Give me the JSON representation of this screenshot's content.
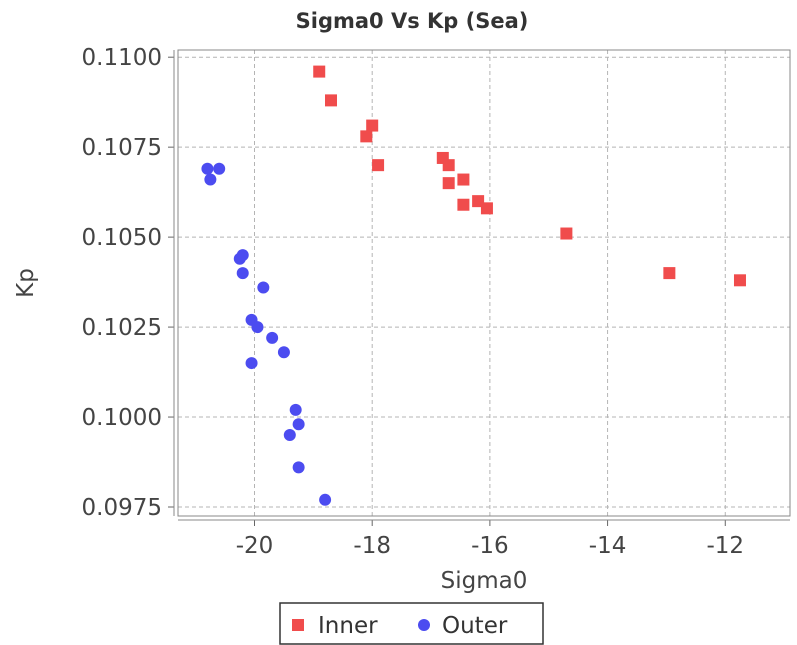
{
  "chart_data": {
    "type": "scatter",
    "title": "Sigma0 Vs Kp (Sea)",
    "xlabel": "Sigma0",
    "ylabel": "Kp",
    "xlim": [
      -21.3,
      -10.9
    ],
    "ylim": [
      0.09725,
      0.1102
    ],
    "xticks": [
      -20,
      -18,
      -16,
      -14,
      -12
    ],
    "xtick_labels": [
      "-20",
      "-18",
      "-16",
      "-14",
      "-12"
    ],
    "yticks": [
      0.0975,
      0.1,
      0.1025,
      0.105,
      0.1075,
      0.11
    ],
    "ytick_labels": [
      "0.0975",
      "0.1000",
      "0.1025",
      "0.1050",
      "0.1075",
      "0.1100"
    ],
    "grid": true,
    "legend_position": "bottom-center",
    "series": [
      {
        "name": "Inner",
        "marker": "square",
        "color": "#f04c4c",
        "points": [
          [
            -18.9,
            0.1096
          ],
          [
            -18.7,
            0.1088
          ],
          [
            -18.0,
            0.1081
          ],
          [
            -18.1,
            0.1078
          ],
          [
            -17.9,
            0.107
          ],
          [
            -16.8,
            0.1072
          ],
          [
            -16.7,
            0.107
          ],
          [
            -16.7,
            0.1065
          ],
          [
            -16.45,
            0.1066
          ],
          [
            -16.45,
            0.1059
          ],
          [
            -16.2,
            0.106
          ],
          [
            -16.05,
            0.1058
          ],
          [
            -14.7,
            0.1051
          ],
          [
            -12.95,
            0.104
          ],
          [
            -11.75,
            0.1038
          ]
        ]
      },
      {
        "name": "Outer",
        "marker": "circle",
        "color": "#4c4cf0",
        "points": [
          [
            -20.8,
            0.1069
          ],
          [
            -20.6,
            0.1069
          ],
          [
            -20.75,
            0.1066
          ],
          [
            -20.2,
            0.1045
          ],
          [
            -20.25,
            0.1044
          ],
          [
            -20.2,
            0.104
          ],
          [
            -19.85,
            0.1036
          ],
          [
            -20.05,
            0.1027
          ],
          [
            -19.95,
            0.1025
          ],
          [
            -19.7,
            0.1022
          ],
          [
            -19.5,
            0.1018
          ],
          [
            -20.05,
            0.1015
          ],
          [
            -19.3,
            0.1002
          ],
          [
            -19.25,
            0.0998
          ],
          [
            -19.4,
            0.0995
          ],
          [
            -19.25,
            0.0986
          ],
          [
            -18.8,
            0.0977
          ]
        ]
      }
    ]
  }
}
